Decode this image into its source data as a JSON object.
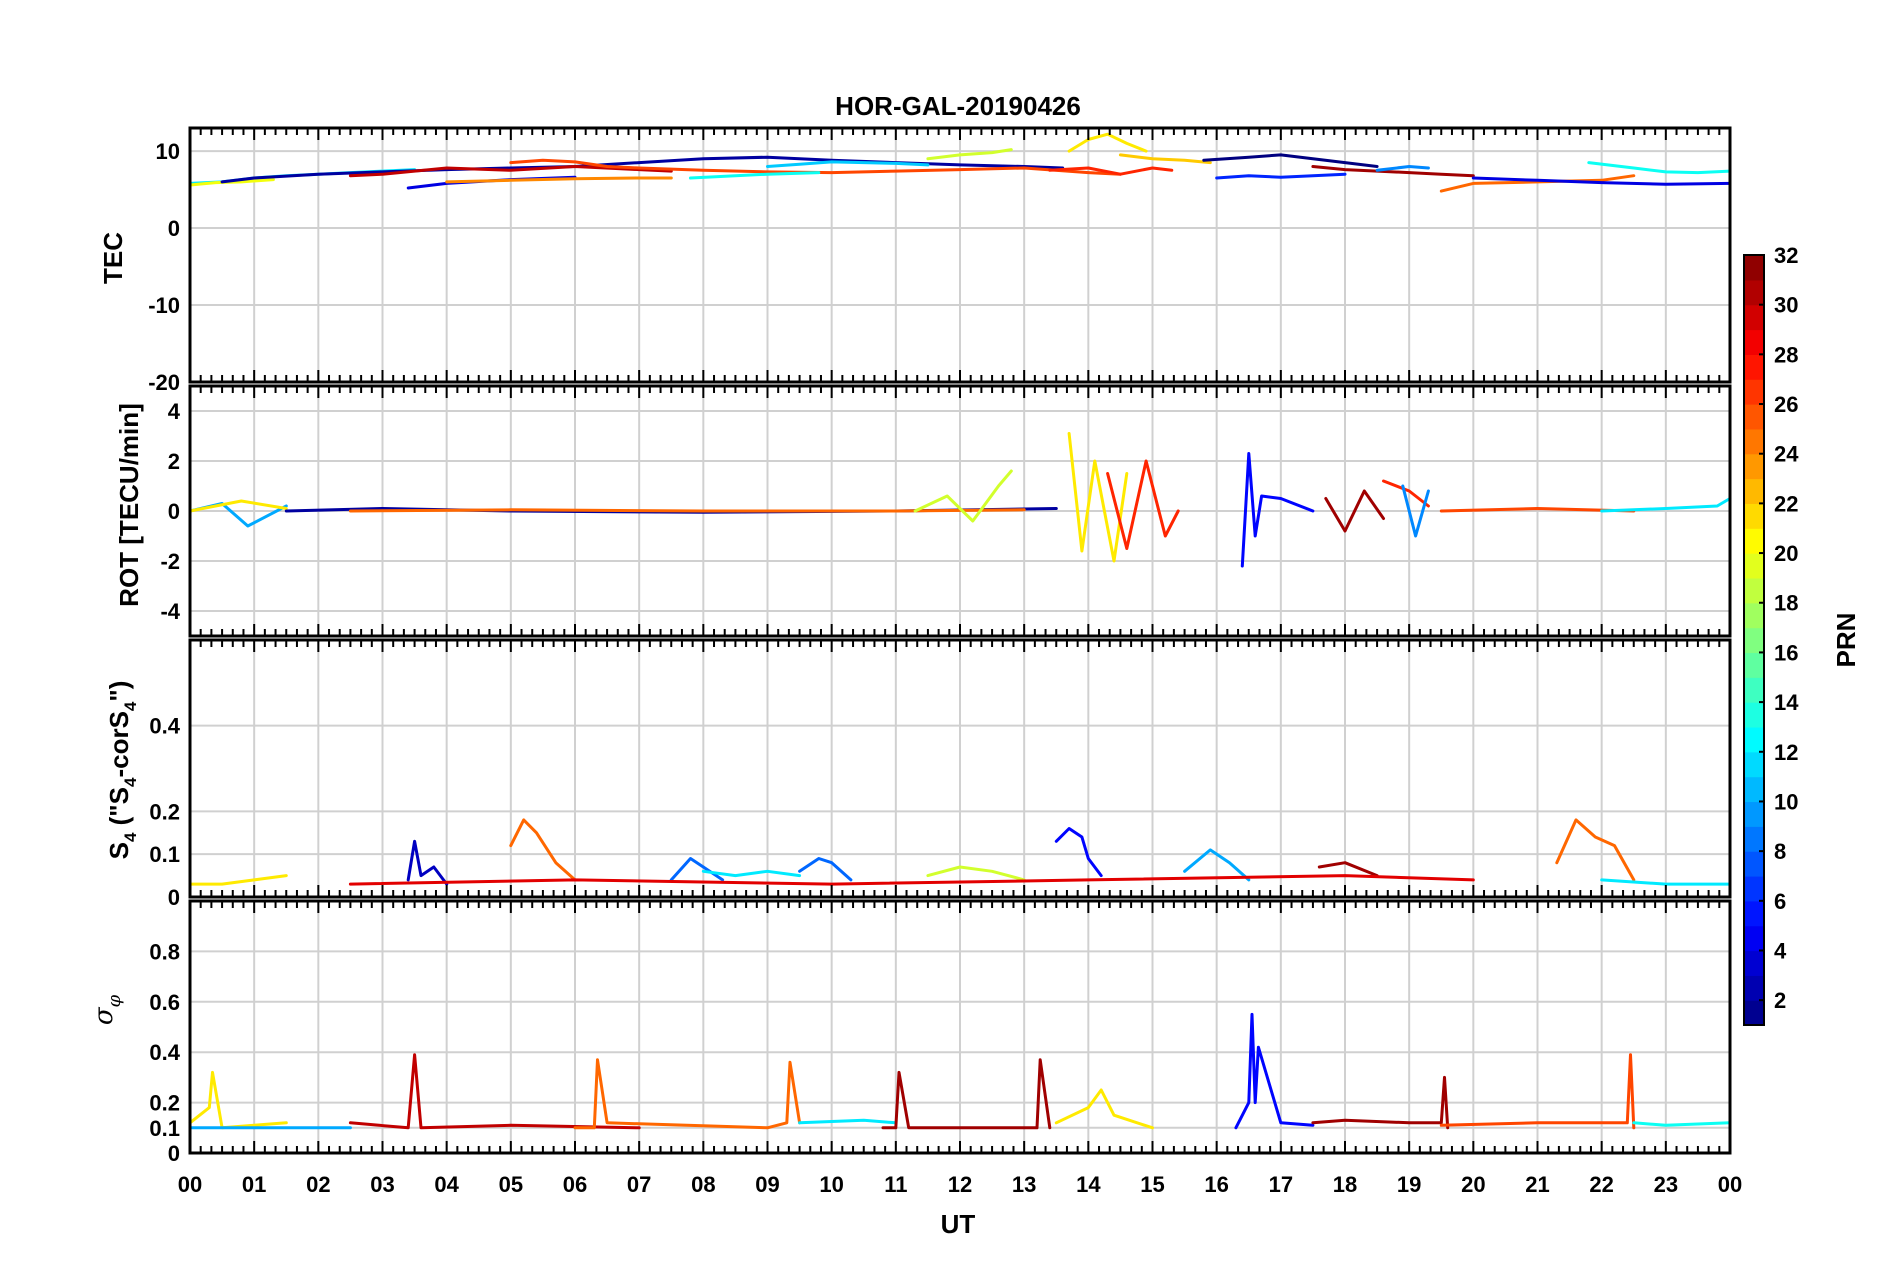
{
  "chart_data": {
    "type": "line",
    "title": "HOR-GAL-20190426",
    "xlabel": "UT",
    "x_tick_labels": [
      "00",
      "01",
      "02",
      "03",
      "04",
      "05",
      "06",
      "07",
      "08",
      "09",
      "10",
      "11",
      "12",
      "13",
      "14",
      "15",
      "16",
      "17",
      "18",
      "19",
      "20",
      "21",
      "22",
      "23",
      "00"
    ],
    "xlim_hours": [
      0,
      24
    ],
    "grid": true,
    "colorbar": {
      "label": "PRN",
      "range": [
        1,
        32
      ],
      "ticks": [
        "2",
        "4",
        "6",
        "8",
        "10",
        "12",
        "14",
        "16",
        "18",
        "20",
        "22",
        "24",
        "26",
        "28",
        "30",
        "32"
      ],
      "colormap": "jet"
    },
    "panels": [
      {
        "id": "tec",
        "ylabel": "TEC",
        "ylim": [
          -20,
          13
        ],
        "yticks": [
          "10",
          "0",
          "-10",
          "-20"
        ],
        "series": [
          {
            "prn": 12,
            "x": [
              0.0,
              0.5,
              1.0,
              1.5,
              2.0,
              2.5,
              3.0,
              3.5
            ],
            "y": [
              5.8,
              6.0,
              6.5,
              6.8,
              7.0,
              7.2,
              7.4,
              7.6
            ]
          },
          {
            "prn": 20,
            "x": [
              0.0,
              0.4,
              0.8,
              1.3
            ],
            "y": [
              5.6,
              5.9,
              6.0,
              6.3
            ]
          },
          {
            "prn": 2,
            "x": [
              0.5,
              1.0,
              2.0,
              3.0,
              4.0,
              5.0,
              6.0,
              7.0,
              8.0,
              9.0,
              10.0,
              11.0,
              12.0,
              13.0,
              13.6
            ],
            "y": [
              6.0,
              6.5,
              7.0,
              7.3,
              7.6,
              7.8,
              8.0,
              8.5,
              9.0,
              9.2,
              8.8,
              8.5,
              8.2,
              8.0,
              7.8
            ]
          },
          {
            "prn": 30,
            "x": [
              2.5,
              3.0,
              4.0,
              5.0,
              6.0,
              7.0,
              7.5
            ],
            "y": [
              6.8,
              7.0,
              7.8,
              7.5,
              8.0,
              7.6,
              7.4
            ]
          },
          {
            "prn": 4,
            "x": [
              3.4,
              4.0,
              5.0,
              6.0
            ],
            "y": [
              5.2,
              5.8,
              6.3,
              6.6
            ]
          },
          {
            "prn": 24,
            "x": [
              4.0,
              5.0,
              6.0,
              7.0,
              7.5
            ],
            "y": [
              6.0,
              6.2,
              6.4,
              6.5,
              6.5
            ]
          },
          {
            "prn": 26,
            "x": [
              5.0,
              5.5,
              6.0,
              6.5,
              7.0,
              8.0,
              9.0,
              10.0,
              11.0,
              12.0,
              13.0,
              14.0,
              14.5
            ],
            "y": [
              8.5,
              8.8,
              8.6,
              8.0,
              7.8,
              7.5,
              7.3,
              7.2,
              7.4,
              7.6,
              7.8,
              7.2,
              7.0
            ]
          },
          {
            "prn": 13,
            "x": [
              7.8,
              8.5,
              9.0,
              9.8
            ],
            "y": [
              6.5,
              6.8,
              7.0,
              7.2
            ]
          },
          {
            "prn": 11,
            "x": [
              9.0,
              9.5,
              10.0,
              11.0,
              11.5
            ],
            "y": [
              8.0,
              8.3,
              8.6,
              8.4,
              8.2
            ]
          },
          {
            "prn": 19,
            "x": [
              11.5,
              12.0,
              12.5,
              12.8
            ],
            "y": [
              9.0,
              9.5,
              9.8,
              10.2
            ]
          },
          {
            "prn": 21,
            "x": [
              13.7,
              14.0,
              14.3,
              14.6,
              14.9
            ],
            "y": [
              10.0,
              11.5,
              12.2,
              11.0,
              10.0
            ]
          },
          {
            "prn": 22,
            "x": [
              14.5,
              15.0,
              15.5,
              15.9
            ],
            "y": [
              9.5,
              9.0,
              8.8,
              8.5
            ]
          },
          {
            "prn": 27,
            "x": [
              13.4,
              14.0,
              14.5,
              15.0,
              15.3
            ],
            "y": [
              7.5,
              7.8,
              7.0,
              7.8,
              7.5
            ]
          },
          {
            "prn": 1,
            "x": [
              15.8,
              16.5,
              17.0,
              17.5,
              18.0,
              18.5
            ],
            "y": [
              8.8,
              9.2,
              9.5,
              9.0,
              8.5,
              8.0
            ]
          },
          {
            "prn": 6,
            "x": [
              16.0,
              16.5,
              17.0,
              17.5,
              18.0
            ],
            "y": [
              6.5,
              6.8,
              6.6,
              6.8,
              7.0
            ]
          },
          {
            "prn": 31,
            "x": [
              17.5,
              18.0,
              18.5,
              19.0,
              19.5,
              20.0
            ],
            "y": [
              8.0,
              7.6,
              7.4,
              7.2,
              7.0,
              6.8
            ]
          },
          {
            "prn": 9,
            "x": [
              18.5,
              19.0,
              19.3
            ],
            "y": [
              7.5,
              8.0,
              7.8
            ]
          },
          {
            "prn": 25,
            "x": [
              19.5,
              20.0,
              21.0,
              22.0,
              22.5
            ],
            "y": [
              4.8,
              5.8,
              6.0,
              6.2,
              6.8
            ]
          },
          {
            "prn": 4,
            "x": [
              20.0,
              21.0,
              22.0,
              23.0,
              24.0
            ],
            "y": [
              6.5,
              6.2,
              5.9,
              5.7,
              5.8
            ]
          },
          {
            "prn": 13,
            "x": [
              21.8,
              22.5,
              23.0,
              23.5,
              24.0
            ],
            "y": [
              8.5,
              7.8,
              7.3,
              7.2,
              7.4
            ]
          }
        ]
      },
      {
        "id": "rot",
        "ylabel": "ROT [TECU/min]",
        "ylim": [
          -5,
          5
        ],
        "yticks": [
          "4",
          "2",
          "0",
          "-2",
          "-4"
        ],
        "series": [
          {
            "prn": 10,
            "x": [
              0.0,
              0.5,
              0.9,
              1.5
            ],
            "y": [
              0.0,
              0.3,
              -0.6,
              0.2
            ]
          },
          {
            "prn": 21,
            "x": [
              0.0,
              0.8,
              1.5
            ],
            "y": [
              0.0,
              0.4,
              0.1
            ]
          },
          {
            "prn": 2,
            "x": [
              1.5,
              3.0,
              5.0,
              8.0,
              11.0,
              13.5
            ],
            "y": [
              0.0,
              0.1,
              0.0,
              -0.05,
              0.0,
              0.1
            ]
          },
          {
            "prn": 25,
            "x": [
              2.5,
              5.0,
              8.0,
              11.0,
              13.0
            ],
            "y": [
              0.0,
              0.05,
              0.0,
              0.0,
              0.05
            ]
          },
          {
            "prn": 19,
            "x": [
              11.3,
              11.8,
              12.2,
              12.6,
              12.8
            ],
            "y": [
              0.0,
              0.6,
              -0.4,
              1.0,
              1.6
            ]
          },
          {
            "prn": 21,
            "x": [
              13.7,
              13.9,
              14.1,
              14.4,
              14.6
            ],
            "y": [
              3.1,
              -1.6,
              2.0,
              -2.0,
              1.5
            ]
          },
          {
            "prn": 27,
            "x": [
              14.3,
              14.6,
              14.9,
              15.2,
              15.4
            ],
            "y": [
              1.5,
              -1.5,
              2.0,
              -1.0,
              0.0
            ]
          },
          {
            "prn": 5,
            "x": [
              16.4,
              16.5,
              16.6,
              16.7,
              17.0,
              17.5
            ],
            "y": [
              -2.2,
              2.3,
              -1.0,
              0.6,
              0.5,
              0.0
            ]
          },
          {
            "prn": 31,
            "x": [
              17.7,
              18.0,
              18.3,
              18.6
            ],
            "y": [
              0.5,
              -0.8,
              0.8,
              -0.3
            ]
          },
          {
            "prn": 27,
            "x": [
              18.6,
              19.0,
              19.3
            ],
            "y": [
              1.2,
              0.8,
              0.2
            ]
          },
          {
            "prn": 9,
            "x": [
              18.9,
              19.1,
              19.3
            ],
            "y": [
              1.0,
              -1.0,
              0.8
            ]
          },
          {
            "prn": 26,
            "x": [
              19.5,
              21.0,
              22.5
            ],
            "y": [
              0.0,
              0.1,
              0.0
            ]
          },
          {
            "prn": 12,
            "x": [
              22.0,
              23.0,
              23.8,
              24.0
            ],
            "y": [
              0.0,
              0.1,
              0.2,
              0.5
            ]
          }
        ]
      },
      {
        "id": "s4",
        "ylabel": "S4 (\"S4-corS4\")",
        "ylim": [
          0,
          0.6
        ],
        "yticks": [
          "0.4",
          "0.2",
          "0.1",
          "0"
        ],
        "series": [
          {
            "prn": 21,
            "x": [
              0.0,
              0.5,
              1.0,
              1.5
            ],
            "y": [
              0.03,
              0.03,
              0.04,
              0.05
            ]
          },
          {
            "prn": 3,
            "x": [
              3.4,
              3.5,
              3.6,
              3.8,
              4.0
            ],
            "y": [
              0.04,
              0.13,
              0.05,
              0.07,
              0.03
            ]
          },
          {
            "prn": 25,
            "x": [
              5.0,
              5.2,
              5.4,
              5.7,
              6.0
            ],
            "y": [
              0.12,
              0.18,
              0.15,
              0.08,
              0.04
            ]
          },
          {
            "prn": 8,
            "x": [
              7.5,
              7.8,
              8.0,
              8.3
            ],
            "y": [
              0.04,
              0.09,
              0.07,
              0.04
            ]
          },
          {
            "prn": 12,
            "x": [
              8.0,
              8.5,
              9.0,
              9.5
            ],
            "y": [
              0.06,
              0.05,
              0.06,
              0.05
            ]
          },
          {
            "prn": 8,
            "x": [
              9.5,
              9.8,
              10.0,
              10.3
            ],
            "y": [
              0.06,
              0.09,
              0.08,
              0.04
            ]
          },
          {
            "prn": 19,
            "x": [
              11.5,
              12.0,
              12.5,
              13.0
            ],
            "y": [
              0.05,
              0.07,
              0.06,
              0.04
            ]
          },
          {
            "prn": 5,
            "x": [
              13.5,
              13.7,
              13.9,
              14.0,
              14.2
            ],
            "y": [
              0.13,
              0.16,
              0.14,
              0.09,
              0.05
            ]
          },
          {
            "prn": 10,
            "x": [
              15.5,
              15.9,
              16.2,
              16.5
            ],
            "y": [
              0.06,
              0.11,
              0.08,
              0.04
            ]
          },
          {
            "prn": 31,
            "x": [
              17.6,
              18.0,
              18.5
            ],
            "y": [
              0.07,
              0.08,
              0.05
            ]
          },
          {
            "prn": 25,
            "x": [
              21.3,
              21.6,
              21.9,
              22.2,
              22.5
            ],
            "y": [
              0.08,
              0.18,
              0.14,
              0.12,
              0.04
            ]
          },
          {
            "prn": 12,
            "x": [
              22.0,
              23.0,
              24.0
            ],
            "y": [
              0.04,
              0.03,
              0.03
            ]
          },
          {
            "prn": 29,
            "x": [
              2.5,
              6.0,
              10.0,
              14.0,
              18.0,
              20.0
            ],
            "y": [
              0.03,
              0.04,
              0.03,
              0.04,
              0.05,
              0.04
            ]
          }
        ]
      },
      {
        "id": "sigma",
        "ylabel": "σφ",
        "ylim": [
          0,
          1.0
        ],
        "yticks": [
          "0.8",
          "0.6",
          "0.4",
          "0.2",
          "0.1",
          "0"
        ],
        "series": [
          {
            "prn": 21,
            "x": [
              0.0,
              0.3,
              0.35,
              0.5,
              1.0,
              1.5
            ],
            "y": [
              0.12,
              0.18,
              0.32,
              0.1,
              0.11,
              0.12
            ]
          },
          {
            "prn": 10,
            "x": [
              0.0,
              1.0,
              2.5
            ],
            "y": [
              0.1,
              0.1,
              0.1
            ]
          },
          {
            "prn": 30,
            "x": [
              2.5,
              3.4,
              3.5,
              3.6,
              5.0,
              7.0
            ],
            "y": [
              0.12,
              0.1,
              0.39,
              0.1,
              0.11,
              0.1
            ]
          },
          {
            "prn": 25,
            "x": [
              6.0,
              6.3,
              6.35,
              6.5,
              9.0,
              9.3,
              9.35,
              9.5
            ],
            "y": [
              0.1,
              0.1,
              0.37,
              0.12,
              0.1,
              0.12,
              0.36,
              0.12
            ]
          },
          {
            "prn": 12,
            "x": [
              9.5,
              10.5,
              11.0
            ],
            "y": [
              0.12,
              0.13,
              0.12
            ]
          },
          {
            "prn": 31,
            "x": [
              10.8,
              11.0,
              11.05,
              11.2,
              13.0,
              13.2,
              13.25,
              13.4
            ],
            "y": [
              0.1,
              0.1,
              0.32,
              0.1,
              0.1,
              0.1,
              0.37,
              0.1
            ]
          },
          {
            "prn": 21,
            "x": [
              13.5,
              14.0,
              14.2,
              14.4,
              15.0
            ],
            "y": [
              0.12,
              0.18,
              0.25,
              0.15,
              0.1
            ]
          },
          {
            "prn": 5,
            "x": [
              16.3,
              16.5,
              16.55,
              16.6,
              16.65,
              17.0,
              17.5
            ],
            "y": [
              0.1,
              0.2,
              0.55,
              0.2,
              0.42,
              0.12,
              0.11
            ]
          },
          {
            "prn": 31,
            "x": [
              17.5,
              18.0,
              19.0,
              19.5,
              19.55,
              19.6
            ],
            "y": [
              0.12,
              0.13,
              0.12,
              0.12,
              0.3,
              0.1
            ]
          },
          {
            "prn": 26,
            "x": [
              19.5,
              21.0,
              22.0,
              22.4,
              22.45,
              22.5
            ],
            "y": [
              0.11,
              0.12,
              0.12,
              0.12,
              0.39,
              0.1
            ]
          },
          {
            "prn": 13,
            "x": [
              22.5,
              23.0,
              24.0
            ],
            "y": [
              0.12,
              0.11,
              0.12
            ]
          }
        ]
      }
    ]
  }
}
